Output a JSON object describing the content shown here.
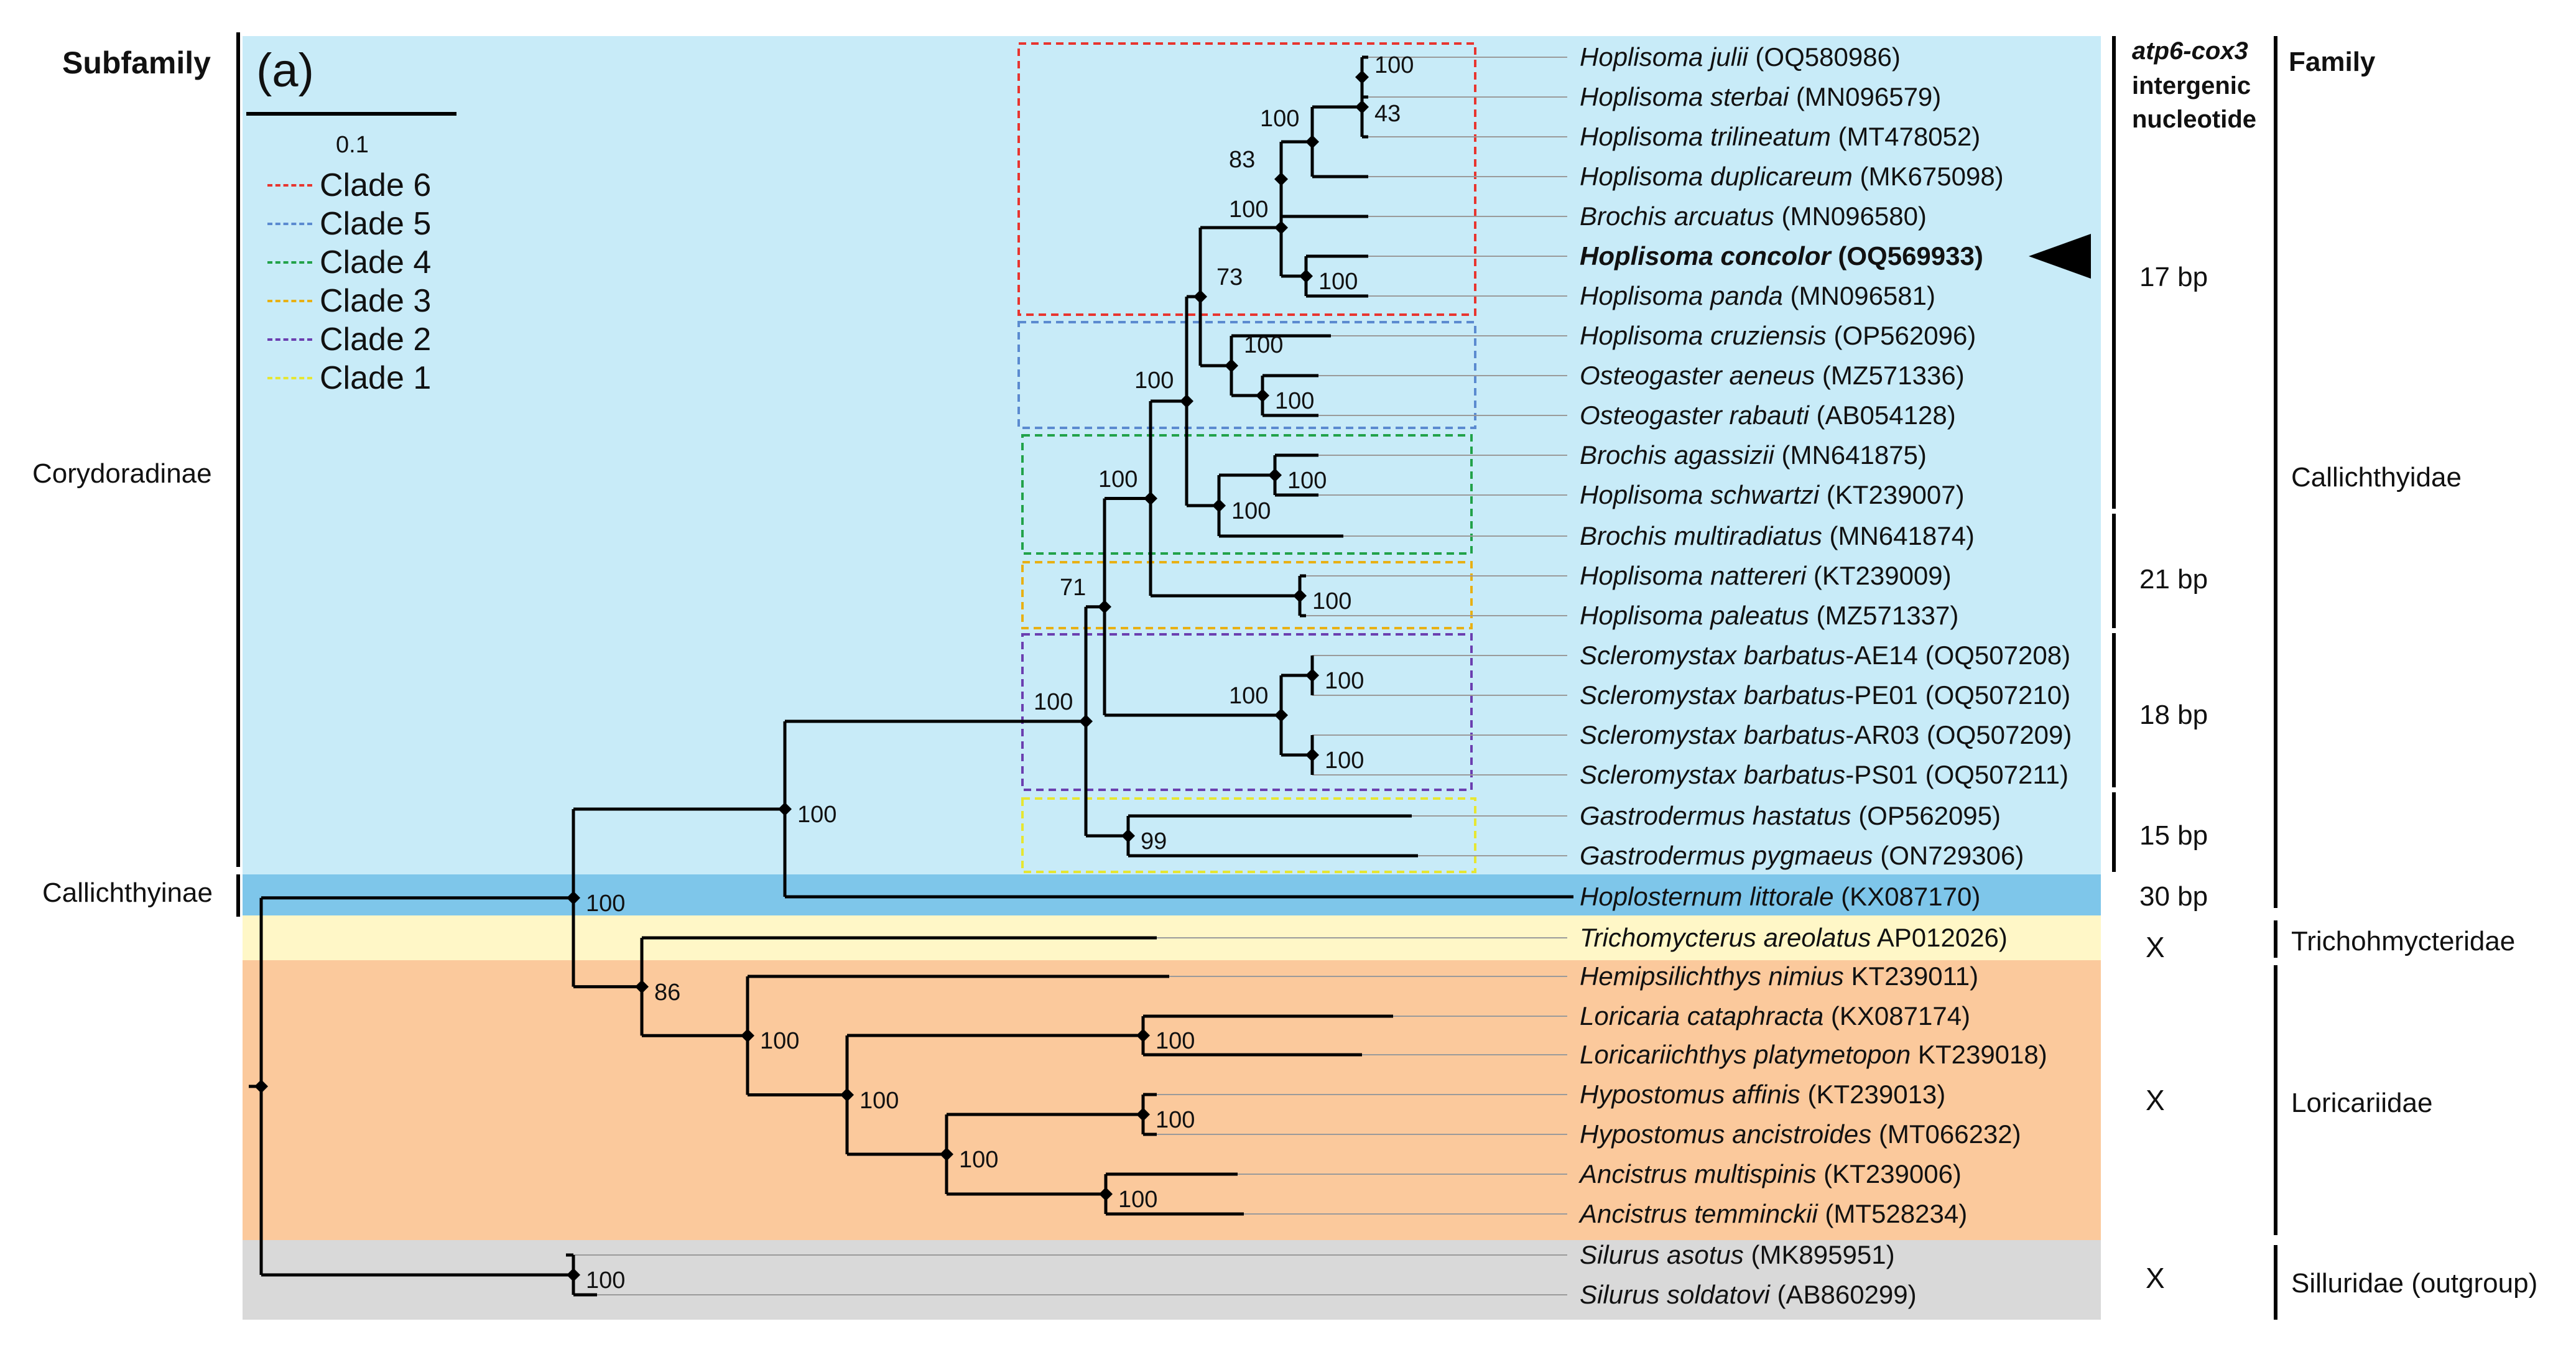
{
  "panel_label": "(a)",
  "scale_label": "0.1",
  "left_header": "Subfamily",
  "right_header": "Family",
  "mid_header": {
    "line1": "atp6-cox3",
    "line2": "intergenic",
    "line3": "nucleotide"
  },
  "subfamilies": {
    "corydoradinae": "Corydoradinae",
    "callichthyinae": "Callichthyinae"
  },
  "families": {
    "callichthyidae": "Callichthyidae",
    "trichomycteridae": "Trichohmycteridae",
    "loricariidae": "Loricariidae",
    "siluridae": "Silluridae (outgroup)"
  },
  "intergenic": {
    "clade_a": "17 bp",
    "clade_b": "21 bp",
    "clade_c": "18 bp",
    "clade_d": "15 bp",
    "hoplosternum": "30 bp",
    "tricho": "X",
    "lorica": "X",
    "silurus": "X"
  },
  "legend": [
    {
      "label": "Clade 6",
      "color": "#e8352f"
    },
    {
      "label": "Clade 5",
      "color": "#5b8bd0"
    },
    {
      "label": "Clade 4",
      "color": "#22a24a"
    },
    {
      "label": "Clade 3",
      "color": "#e8b014"
    },
    {
      "label": "Clade 2",
      "color": "#6b3fb0"
    },
    {
      "label": "Clade 1",
      "color": "#e6e632"
    }
  ],
  "colors": {
    "corydoradinae_bg": "#c8ebf8",
    "callichthyinae_bg": "#7ec6ea",
    "trichomycteridae_bg": "#fff7c7",
    "loricariidae_bg": "#fbc99c",
    "siluridae_bg": "#d9d9d9"
  },
  "taxa": [
    {
      "species": "Hoplisoma julii",
      "accession": "(OQ580986)"
    },
    {
      "species": "Hoplisoma sterbai",
      "accession": "(MN096579)"
    },
    {
      "species": "Hoplisoma trilineatum",
      "accession": "(MT478052)"
    },
    {
      "species": "Hoplisoma duplicareum",
      "accession": "(MK675098)"
    },
    {
      "species": "Brochis arcuatus",
      "accession": "(MN096580)"
    },
    {
      "species": "Hoplisoma concolor",
      "accession": "(OQ569933)",
      "highlight": true
    },
    {
      "species": "Hoplisoma panda",
      "accession": "(MN096581)"
    },
    {
      "species": "Hoplisoma cruziensis",
      "accession": "(OP562096)"
    },
    {
      "species": "Osteogaster aeneus",
      "accession": "(MZ571336)"
    },
    {
      "species": "Osteogaster rabauti",
      "accession": "(AB054128)"
    },
    {
      "species": "Brochis agassizii",
      "accession": "(MN641875)"
    },
    {
      "species": "Hoplisoma schwartzi",
      "accession": "(KT239007)"
    },
    {
      "species": "Brochis multiradiatus",
      "accession": "(MN641874)"
    },
    {
      "species": "Hoplisoma nattereri",
      "accession": "(KT239009)"
    },
    {
      "species": "Hoplisoma paleatus",
      "accession": "(MZ571337)"
    },
    {
      "species": "Scleromystax barbatus",
      "suffix": "-AE14",
      "accession": "(OQ507208)"
    },
    {
      "species": "Scleromystax barbatus",
      "suffix": "-PE01",
      "accession": "(OQ507210)"
    },
    {
      "species": "Scleromystax barbatus",
      "suffix": "-AR03",
      "accession": "(OQ507209)"
    },
    {
      "species": "Scleromystax barbatus",
      "suffix": "-PS01",
      "accession": "(OQ507211)"
    },
    {
      "species": "Gastrodermus hastatus",
      "accession": "(OP562095)"
    },
    {
      "species": "Gastrodermus pygmaeus",
      "accession": "(ON729306)"
    },
    {
      "species": "Hoplosternum littorale",
      "accession": "(KX087170)"
    },
    {
      "species": "Trichomycterus areolatus",
      "accession": "AP012026)"
    },
    {
      "species": "Hemipsilichthys nimius",
      "accession": "KT239011)"
    },
    {
      "species": "Loricaria cataphracta",
      "accession": "(KX087174)"
    },
    {
      "species": "Loricariichthys platymetopon",
      "accession": "KT239018)"
    },
    {
      "species": "Hypostomus affinis",
      "accession": "(KT239013)"
    },
    {
      "species": "Hypostomus ancistroides",
      "accession": "(MT066232)"
    },
    {
      "species": "Ancistrus multispinis",
      "accession": "(KT239006)"
    },
    {
      "species": "Ancistrus temminckii",
      "accession": "(MT528234)"
    },
    {
      "species": "Silurus asotus",
      "accession": "(MK895951)"
    },
    {
      "species": "Silurus soldatovi",
      "accession": "(AB860299)"
    }
  ],
  "support": {
    "n_julii_sterbai": "100",
    "n_sterbai_tri": "43",
    "n_tri_group": "100",
    "n_dup": "83",
    "n_arcuatus": "100",
    "n_concolor_panda": "100",
    "n_clade6_5": "73",
    "n_aeneus_group": "100",
    "n_aeneus_rabauti": "100",
    "n_clades654": "100",
    "n_agassizii": "100",
    "n_multi": "100",
    "n_clades6_3": "100",
    "n_nattereri": "100",
    "n_clades6_2": "71",
    "n_scler_pair1": "100",
    "n_scler": "100",
    "n_scler_pair2": "100",
    "n_corydoradinae": "100",
    "n_gastro": "99",
    "n_callichthyidae": "100",
    "n_callichthyidae_root": "100",
    "n_lor_tricho": "86",
    "n_loricariidae": "100",
    "n_lor_pair": "100",
    "n_hypo_anc": "100",
    "n_hypo": "100",
    "n_hypo_anc2": "100",
    "n_anc": "100",
    "n_silurus": "100"
  }
}
